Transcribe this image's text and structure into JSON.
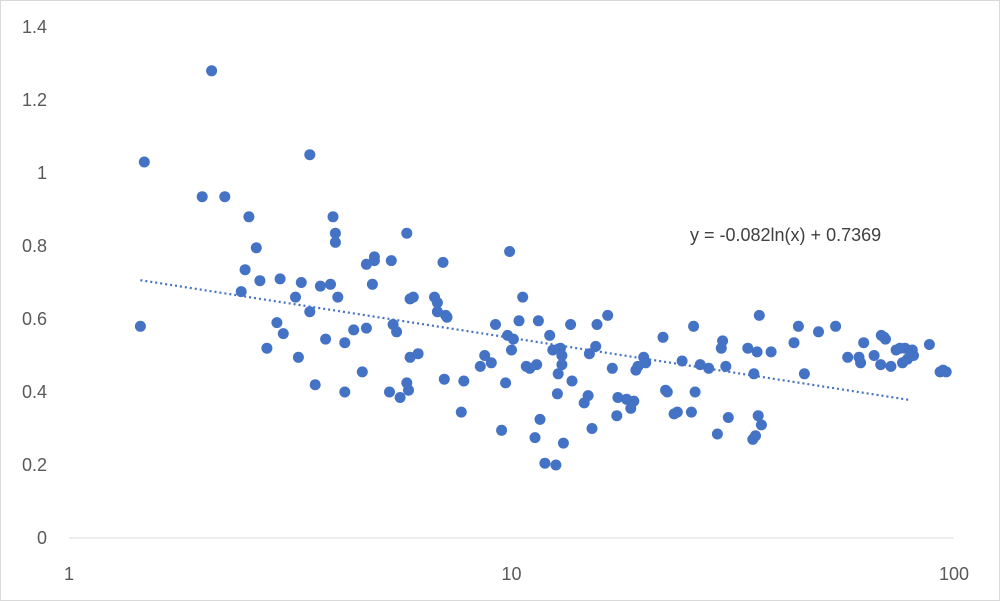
{
  "chart_data": {
    "type": "scatter",
    "title": "",
    "xlabel": "",
    "ylabel": "",
    "x_scale": "log",
    "xlim": [
      1,
      100
    ],
    "ylim": [
      0,
      1.4
    ],
    "x_ticks": [
      1,
      10,
      100
    ],
    "x_tick_labels": [
      "1",
      "10",
      "100"
    ],
    "y_ticks": [
      0,
      0.2,
      0.4,
      0.6,
      0.8,
      1.0,
      1.2,
      1.4
    ],
    "y_tick_labels": [
      "0",
      "0.2",
      "0.4",
      "0.6",
      "0.8",
      "1",
      "1.2",
      "1.4"
    ],
    "gridlines": false,
    "legend": "none",
    "colors": {
      "points": "#4472C4",
      "trendline": "#4472C4",
      "axis": "#d9d9d9"
    },
    "trendline": {
      "type": "logarithmic",
      "a": -0.082,
      "b": 0.7369,
      "x_range": [
        1.45,
        80
      ],
      "label": "y = -0.082ln(x) + 0.7369"
    },
    "points": [
      [
        1.45,
        0.58
      ],
      [
        1.48,
        1.03
      ],
      [
        2.0,
        0.935
      ],
      [
        2.1,
        1.28
      ],
      [
        2.25,
        0.935
      ],
      [
        2.45,
        0.675
      ],
      [
        2.5,
        0.735
      ],
      [
        2.55,
        0.88
      ],
      [
        2.65,
        0.795
      ],
      [
        2.7,
        0.705
      ],
      [
        2.8,
        0.52
      ],
      [
        2.95,
        0.59
      ],
      [
        3.0,
        0.71
      ],
      [
        3.05,
        0.56
      ],
      [
        3.25,
        0.66
      ],
      [
        3.3,
        0.495
      ],
      [
        3.35,
        0.7
      ],
      [
        3.5,
        0.62
      ],
      [
        3.5,
        1.05
      ],
      [
        3.6,
        0.42
      ],
      [
        3.7,
        0.69
      ],
      [
        3.8,
        0.545
      ],
      [
        3.9,
        0.695
      ],
      [
        3.95,
        0.88
      ],
      [
        4.0,
        0.835
      ],
      [
        4.0,
        0.81
      ],
      [
        4.05,
        0.66
      ],
      [
        4.2,
        0.4
      ],
      [
        4.2,
        0.535
      ],
      [
        4.4,
        0.57
      ],
      [
        4.6,
        0.455
      ],
      [
        4.7,
        0.75
      ],
      [
        4.7,
        0.575
      ],
      [
        4.9,
        0.77
      ],
      [
        4.9,
        0.76
      ],
      [
        4.85,
        0.695
      ],
      [
        5.3,
        0.4
      ],
      [
        5.35,
        0.76
      ],
      [
        5.4,
        0.585
      ],
      [
        5.5,
        0.565
      ],
      [
        5.6,
        0.385
      ],
      [
        5.8,
        0.835
      ],
      [
        5.8,
        0.425
      ],
      [
        5.85,
        0.405
      ],
      [
        5.9,
        0.495
      ],
      [
        5.9,
        0.655
      ],
      [
        6.0,
        0.66
      ],
      [
        6.15,
        0.505
      ],
      [
        6.7,
        0.66
      ],
      [
        6.8,
        0.645
      ],
      [
        6.8,
        0.62
      ],
      [
        7.0,
        0.755
      ],
      [
        7.1,
        0.61
      ],
      [
        7.05,
        0.435
      ],
      [
        7.15,
        0.605
      ],
      [
        7.7,
        0.345
      ],
      [
        7.8,
        0.43
      ],
      [
        8.5,
        0.47
      ],
      [
        8.7,
        0.5
      ],
      [
        9.0,
        0.48
      ],
      [
        9.2,
        0.585
      ],
      [
        9.5,
        0.295
      ],
      [
        9.7,
        0.425
      ],
      [
        9.8,
        0.555
      ],
      [
        9.9,
        0.785
      ],
      [
        10.0,
        0.515
      ],
      [
        10.1,
        0.545
      ],
      [
        10.4,
        0.595
      ],
      [
        10.6,
        0.66
      ],
      [
        10.8,
        0.47
      ],
      [
        11.0,
        0.465
      ],
      [
        11.3,
        0.275
      ],
      [
        11.4,
        0.475
      ],
      [
        11.5,
        0.595
      ],
      [
        11.6,
        0.325
      ],
      [
        11.9,
        0.205
      ],
      [
        12.2,
        0.555
      ],
      [
        12.4,
        0.515
      ],
      [
        12.6,
        0.2
      ],
      [
        12.7,
        0.395
      ],
      [
        12.75,
        0.45
      ],
      [
        12.9,
        0.52
      ],
      [
        13.0,
        0.5
      ],
      [
        13.1,
        0.26
      ],
      [
        13.0,
        0.475
      ],
      [
        13.6,
        0.585
      ],
      [
        13.7,
        0.43
      ],
      [
        14.6,
        0.37
      ],
      [
        14.9,
        0.39
      ],
      [
        15.0,
        0.505
      ],
      [
        15.2,
        0.3
      ],
      [
        15.5,
        0.525
      ],
      [
        15.6,
        0.585
      ],
      [
        16.5,
        0.61
      ],
      [
        16.9,
        0.465
      ],
      [
        17.3,
        0.335
      ],
      [
        17.4,
        0.385
      ],
      [
        18.2,
        0.38
      ],
      [
        18.6,
        0.355
      ],
      [
        18.9,
        0.375
      ],
      [
        19.1,
        0.46
      ],
      [
        19.3,
        0.47
      ],
      [
        19.9,
        0.495
      ],
      [
        20.1,
        0.48
      ],
      [
        22.0,
        0.55
      ],
      [
        22.3,
        0.405
      ],
      [
        22.5,
        0.4
      ],
      [
        23.3,
        0.34
      ],
      [
        23.7,
        0.345
      ],
      [
        24.3,
        0.485
      ],
      [
        25.5,
        0.345
      ],
      [
        25.8,
        0.58
      ],
      [
        26.0,
        0.4
      ],
      [
        26.7,
        0.475
      ],
      [
        27.9,
        0.465
      ],
      [
        29.2,
        0.285
      ],
      [
        29.8,
        0.52
      ],
      [
        30.0,
        0.54
      ],
      [
        30.5,
        0.47
      ],
      [
        30.9,
        0.33
      ],
      [
        34.2,
        0.52
      ],
      [
        35.1,
        0.27
      ],
      [
        35.3,
        0.45
      ],
      [
        35.6,
        0.28
      ],
      [
        35.9,
        0.51
      ],
      [
        36.1,
        0.335
      ],
      [
        36.3,
        0.61
      ],
      [
        36.7,
        0.31
      ],
      [
        38.6,
        0.51
      ],
      [
        43.5,
        0.535
      ],
      [
        44.5,
        0.58
      ],
      [
        45.9,
        0.45
      ],
      [
        49.4,
        0.565
      ],
      [
        54.0,
        0.58
      ],
      [
        57.5,
        0.495
      ],
      [
        61.0,
        0.495
      ],
      [
        61.5,
        0.48
      ],
      [
        62.5,
        0.535
      ],
      [
        66.0,
        0.5
      ],
      [
        68.3,
        0.475
      ],
      [
        68.5,
        0.555
      ],
      [
        69.5,
        0.55
      ],
      [
        70.0,
        0.545
      ],
      [
        72.0,
        0.47
      ],
      [
        74.0,
        0.515
      ],
      [
        75.5,
        0.52
      ],
      [
        76.5,
        0.48
      ],
      [
        77.5,
        0.52
      ],
      [
        78.5,
        0.49
      ],
      [
        80.0,
        0.505
      ],
      [
        81.0,
        0.5
      ],
      [
        80.5,
        0.515
      ],
      [
        88.0,
        0.53
      ],
      [
        93.0,
        0.455
      ],
      [
        94.5,
        0.46
      ],
      [
        96.0,
        0.455
      ]
    ]
  }
}
